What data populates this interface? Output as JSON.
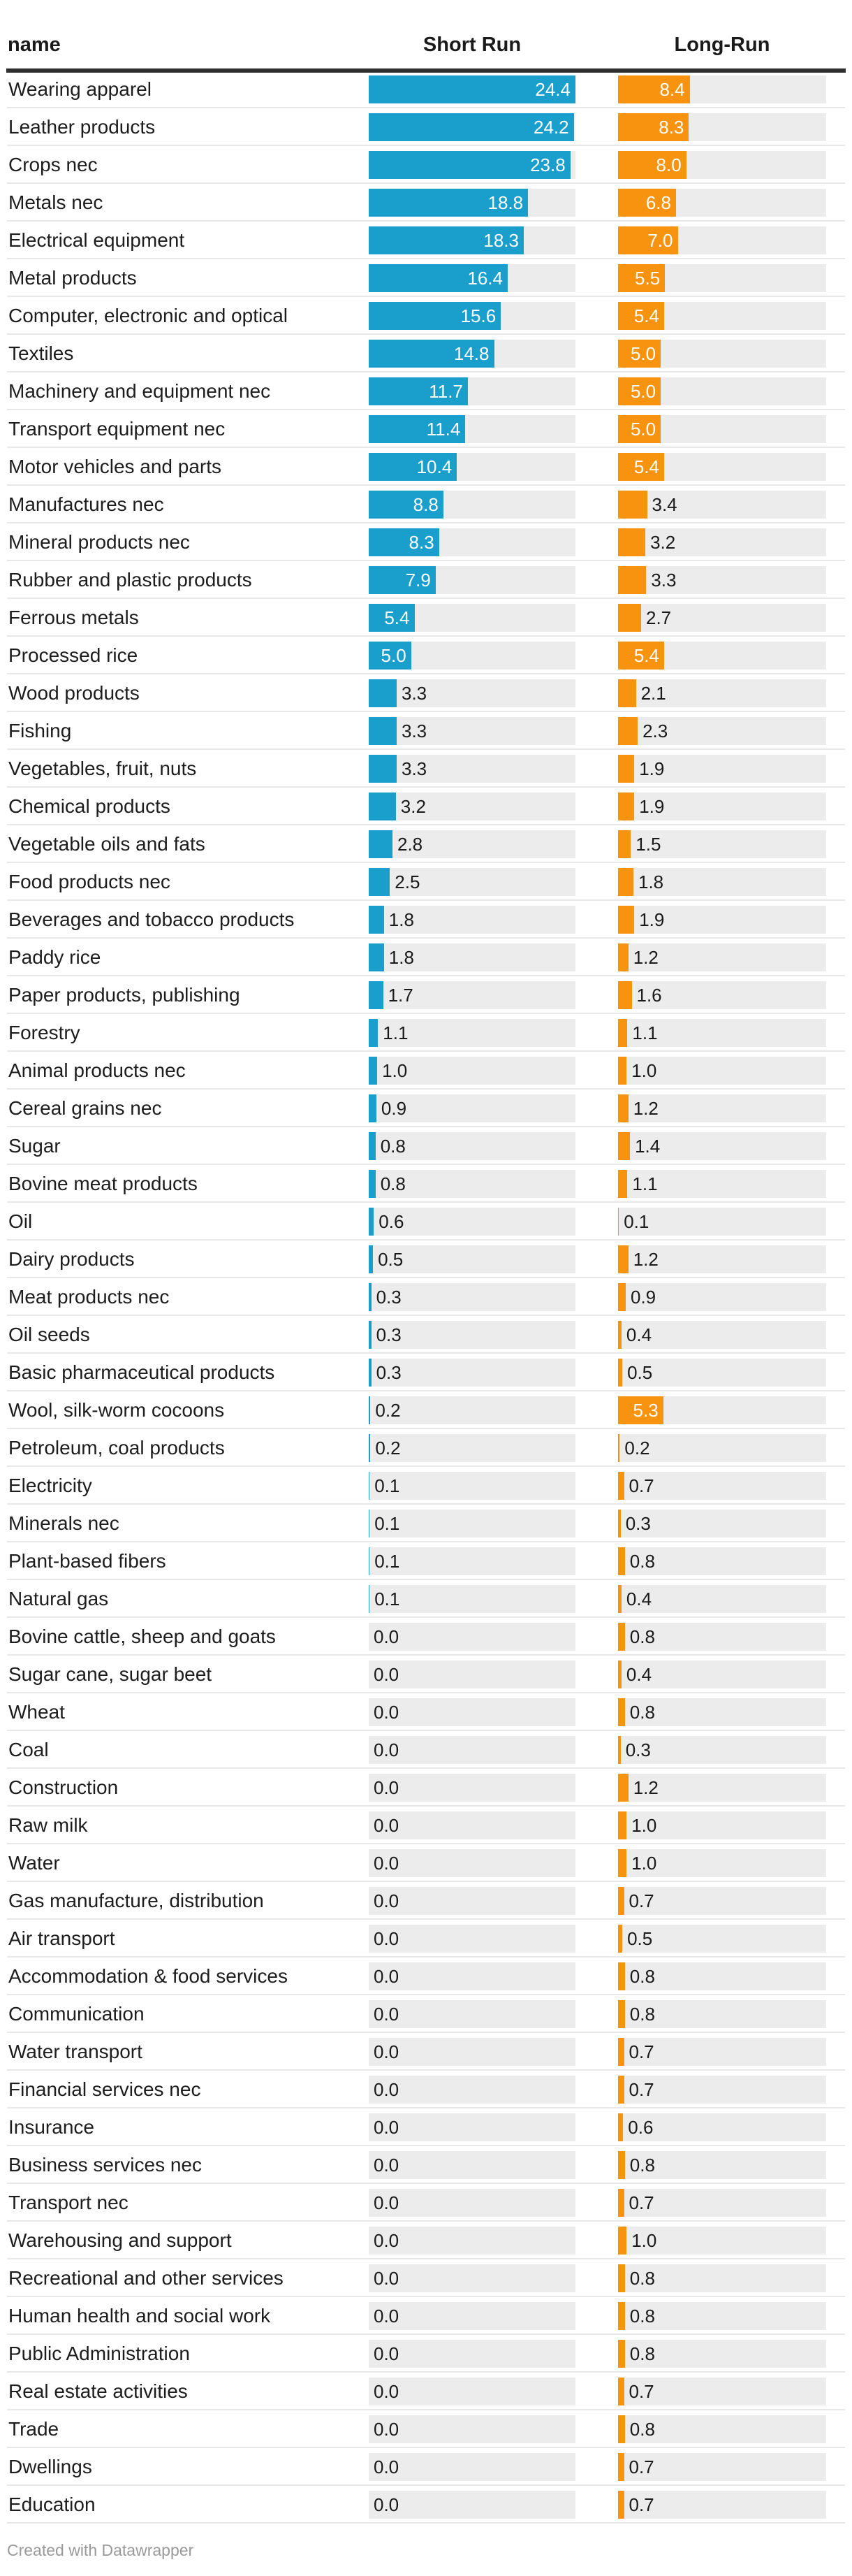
{
  "header": {
    "name": "name",
    "short_run": "Short Run",
    "long_run": "Long-Run"
  },
  "footer": {
    "credit": "Created with Datawrapper"
  },
  "colors": {
    "short_bar": "#1a9ecb",
    "long_bar": "#f7930e",
    "track": "#ececec",
    "header_rule": "#2f2f2f",
    "row_separator": "#e8e8e8",
    "outside_label": "#1a1a1a",
    "inside_label": "#ffffff",
    "credit_text": "#9a9a9a"
  },
  "chart_data": {
    "type": "bar",
    "orientation": "horizontal",
    "title": "",
    "xlabel": "",
    "ylabel": "name",
    "scale_max": 24.4,
    "inside_label_threshold": 5.0,
    "value_decimals": 1,
    "grid": false,
    "legend_position": "column-headers",
    "categories": [
      "Wearing apparel",
      "Leather products",
      "Crops nec",
      "Metals nec",
      "Electrical equipment",
      "Metal products",
      "Computer, electronic and optical",
      "Textiles",
      "Machinery and equipment nec",
      "Transport equipment nec",
      "Motor vehicles and parts",
      "Manufactures nec",
      "Mineral products nec",
      "Rubber and plastic products",
      "Ferrous metals",
      "Processed rice",
      "Wood products",
      "Fishing",
      "Vegetables, fruit, nuts",
      "Chemical products",
      "Vegetable oils and fats",
      "Food products nec",
      "Beverages and tobacco products",
      "Paddy rice",
      "Paper products, publishing",
      "Forestry",
      "Animal products nec",
      "Cereal grains nec",
      "Sugar",
      "Bovine meat products",
      "Oil",
      "Dairy products",
      "Meat products nec",
      "Oil seeds",
      "Basic pharmaceutical products",
      "Wool, silk-worm cocoons",
      "Petroleum, coal products",
      "Electricity",
      "Minerals nec",
      "Plant-based fibers",
      "Natural gas",
      "Bovine cattle, sheep and goats",
      "Sugar cane, sugar beet",
      "Wheat",
      "Coal",
      "Construction",
      "Raw milk",
      "Water",
      "Gas manufacture, distribution",
      "Air transport",
      "Accommodation & food services",
      "Communication",
      "Water transport",
      "Financial services nec",
      "Insurance",
      "Business services nec",
      "Transport nec",
      "Warehousing and support",
      "Recreational and other services",
      "Human health and social work",
      "Public Administration",
      "Real estate activities",
      "Trade",
      "Dwellings",
      "Education"
    ],
    "series": [
      {
        "name": "Short Run",
        "values": [
          24.4,
          24.2,
          23.8,
          18.8,
          18.3,
          16.4,
          15.6,
          14.8,
          11.7,
          11.4,
          10.4,
          8.8,
          8.3,
          7.9,
          5.4,
          5.0,
          3.3,
          3.3,
          3.3,
          3.2,
          2.8,
          2.5,
          1.8,
          1.8,
          1.7,
          1.1,
          1.0,
          0.9,
          0.8,
          0.8,
          0.6,
          0.5,
          0.3,
          0.3,
          0.3,
          0.2,
          0.2,
          0.1,
          0.1,
          0.1,
          0.1,
          0.0,
          0.0,
          0.0,
          0.0,
          0.0,
          0.0,
          0.0,
          0.0,
          0.0,
          0.0,
          0.0,
          0.0,
          0.0,
          0.0,
          0.0,
          0.0,
          0.0,
          0.0,
          0.0,
          0.0,
          0.0,
          0.0,
          0.0,
          0.0
        ]
      },
      {
        "name": "Long-Run",
        "values": [
          8.4,
          8.3,
          8.0,
          6.8,
          7.0,
          5.5,
          5.4,
          5.0,
          5.0,
          5.0,
          5.4,
          3.4,
          3.2,
          3.3,
          2.7,
          5.4,
          2.1,
          2.3,
          1.9,
          1.9,
          1.5,
          1.8,
          1.9,
          1.2,
          1.6,
          1.1,
          1.0,
          1.2,
          1.4,
          1.1,
          0.1,
          1.2,
          0.9,
          0.4,
          0.5,
          5.3,
          0.2,
          0.7,
          0.3,
          0.8,
          0.4,
          0.8,
          0.4,
          0.8,
          0.3,
          1.2,
          1.0,
          1.0,
          0.7,
          0.5,
          0.8,
          0.8,
          0.7,
          0.7,
          0.6,
          0.8,
          0.7,
          1.0,
          0.8,
          0.8,
          0.8,
          0.7,
          0.8,
          0.7,
          0.7
        ]
      }
    ]
  }
}
